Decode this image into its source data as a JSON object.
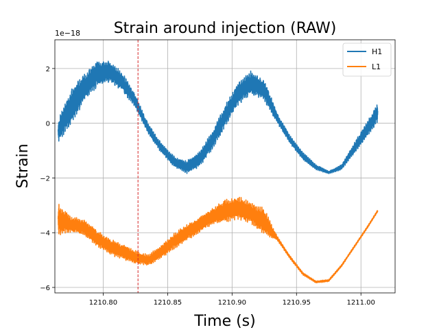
{
  "chart_data": {
    "type": "line",
    "title": "Strain around injection (RAW)",
    "xlabel": "Time (s)",
    "ylabel": "Strain",
    "y_offset_label": "1e−18",
    "xlim": [
      1210.7625,
      1211.0265
    ],
    "ylim": [
      -6.2,
      3.05
    ],
    "x_ticks": [
      1210.8,
      1210.85,
      1210.9,
      1210.95,
      1211.0
    ],
    "x_tick_labels": [
      "1210.80",
      "1210.85",
      "1210.90",
      "1210.95",
      "1211.00"
    ],
    "y_ticks": [
      -6,
      -4,
      -2,
      0,
      2
    ],
    "y_tick_labels": [
      "−6",
      "−4",
      "−2",
      "0",
      "2"
    ],
    "grid": true,
    "legend_position": "top-right",
    "injection_time": 1210.827,
    "injection_line_color": "#d62728",
    "series": [
      {
        "name": "H1",
        "color": "#1f77b4",
        "x": [
          1210.765,
          1210.775,
          1210.785,
          1210.795,
          1210.805,
          1210.815,
          1210.825,
          1210.835,
          1210.845,
          1210.855,
          1210.865,
          1210.875,
          1210.885,
          1210.895,
          1210.905,
          1210.915,
          1210.925,
          1210.935,
          1210.945,
          1210.955,
          1210.965,
          1210.975,
          1210.985,
          1210.995,
          1211.005,
          1211.013
        ],
        "y": [
          -0.3,
          0.6,
          1.3,
          1.8,
          1.9,
          1.5,
          0.8,
          -0.2,
          -0.9,
          -1.4,
          -1.6,
          -1.3,
          -0.6,
          0.3,
          1.1,
          1.5,
          1.2,
          0.2,
          -0.6,
          -1.2,
          -1.6,
          -1.8,
          -1.6,
          -0.9,
          -0.2,
          0.4
        ],
        "oscillation_amplitude": [
          0.45,
          0.7,
          0.55,
          0.5,
          0.4,
          0.35,
          0.25,
          0.2,
          0.2,
          0.2,
          0.25,
          0.3,
          0.35,
          0.4,
          0.45,
          0.45,
          0.4,
          0.2,
          0.15,
          0.15,
          0.1,
          0.05,
          0.1,
          0.2,
          0.3,
          0.35
        ]
      },
      {
        "name": "L1",
        "color": "#ff7f0e",
        "x": [
          1210.765,
          1210.775,
          1210.785,
          1210.795,
          1210.805,
          1210.815,
          1210.825,
          1210.835,
          1210.845,
          1210.855,
          1210.865,
          1210.875,
          1210.885,
          1210.895,
          1210.905,
          1210.915,
          1210.925,
          1210.935,
          1210.945,
          1210.955,
          1210.965,
          1210.975,
          1210.985,
          1210.995,
          1211.005,
          1211.013
        ],
        "y": [
          -3.5,
          -3.7,
          -3.8,
          -4.2,
          -4.5,
          -4.7,
          -4.9,
          -5.0,
          -4.7,
          -4.3,
          -4.0,
          -3.7,
          -3.4,
          -3.2,
          -3.1,
          -3.3,
          -3.6,
          -4.2,
          -4.9,
          -5.5,
          -5.8,
          -5.75,
          -5.2,
          -4.5,
          -3.8,
          -3.2
        ],
        "oscillation_amplitude": [
          0.6,
          0.3,
          0.3,
          0.3,
          0.3,
          0.3,
          0.25,
          0.2,
          0.25,
          0.3,
          0.3,
          0.3,
          0.3,
          0.45,
          0.45,
          0.4,
          0.5,
          0.08,
          0.06,
          0.05,
          0.04,
          0.04,
          0.04,
          0.04,
          0.04,
          0.04
        ]
      }
    ]
  }
}
